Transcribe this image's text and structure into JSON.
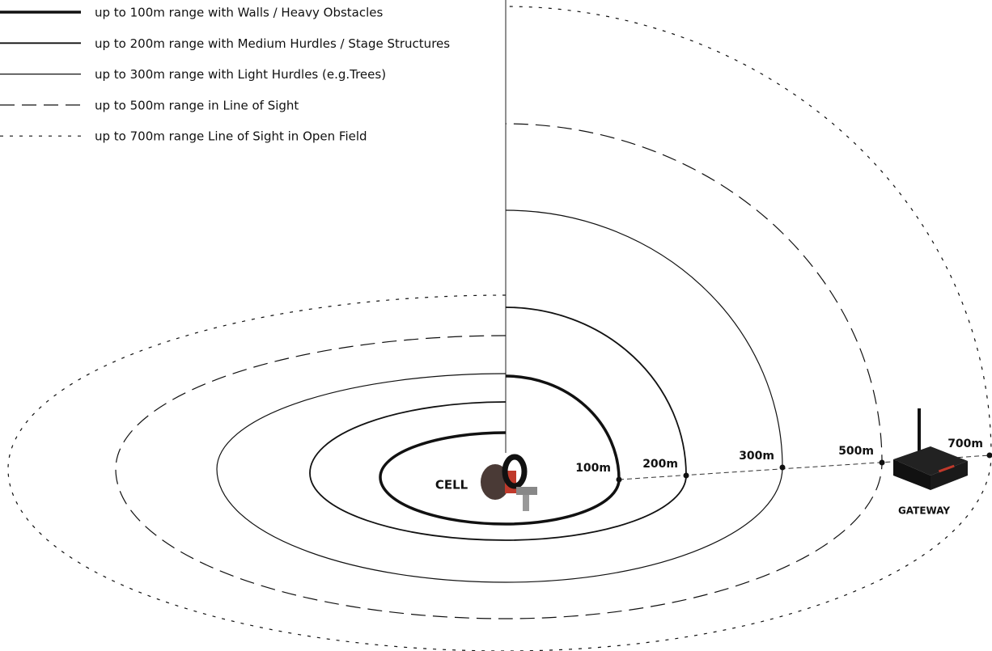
{
  "legend": [
    {
      "label": "up to 100m range with Walls / Heavy Obstacles"
    },
    {
      "label": "up to 200m range with Medium Hurdles / Stage Structures"
    },
    {
      "label": "up to 300m range with Light Hurdles (e.g.Trees)"
    },
    {
      "label": "up to 500m range in Line of Sight"
    },
    {
      "label": "up to 700m range Line of Sight in Open Field"
    }
  ],
  "range_labels": [
    "100m",
    "200m",
    "300m",
    "500m",
    "700m"
  ],
  "devices": {
    "cell": "CELL",
    "gateway": "GATEWAY"
  }
}
